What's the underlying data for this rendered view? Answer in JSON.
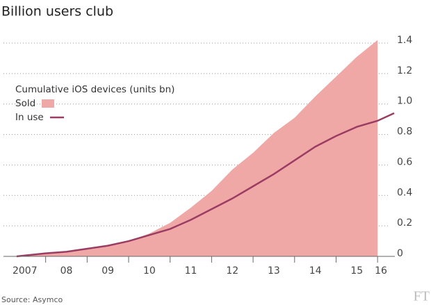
{
  "chart_data": {
    "type": "area-line",
    "title": "Billion users club",
    "legend_title": "Cumulative iOS devices (units bn)",
    "source": "Source: Asymco",
    "logo": "FT",
    "x": [
      2007.3,
      2008,
      2008.5,
      2009,
      2009.5,
      2010,
      2010.5,
      2011,
      2011.5,
      2012,
      2012.5,
      2013,
      2013.5,
      2014,
      2014.5,
      2015,
      2015.5,
      2016,
      2016.4
    ],
    "series": [
      {
        "name": "Sold",
        "kind": "area",
        "color": "#f0a8a6",
        "values": [
          0,
          0.02,
          0.03,
          0.05,
          0.07,
          0.1,
          0.15,
          0.22,
          0.32,
          0.43,
          0.57,
          0.68,
          0.81,
          0.91,
          1.05,
          1.18,
          1.31,
          1.42,
          null
        ]
      },
      {
        "name": "In use",
        "kind": "line",
        "color": "#9b3c62",
        "values": [
          0,
          0.02,
          0.03,
          0.05,
          0.07,
          0.1,
          0.14,
          0.18,
          0.24,
          0.31,
          0.38,
          0.46,
          0.54,
          0.63,
          0.72,
          0.79,
          0.85,
          0.89,
          0.94
        ]
      }
    ],
    "xlim": [
      2006.9,
      2016.45
    ],
    "xticks": [
      {
        "value": 2007,
        "label": "2007"
      },
      {
        "value": 2008,
        "label": "08"
      },
      {
        "value": 2009,
        "label": "09"
      },
      {
        "value": 2010,
        "label": "10"
      },
      {
        "value": 2011,
        "label": "11"
      },
      {
        "value": 2012,
        "label": "12"
      },
      {
        "value": 2013,
        "label": "13"
      },
      {
        "value": 2014,
        "label": "14"
      },
      {
        "value": 2015,
        "label": "15"
      },
      {
        "value": 2016,
        "label": "16"
      }
    ],
    "ylim": [
      0,
      1.4
    ],
    "yticks": [
      0,
      0.2,
      0.4,
      0.6,
      {
        "value": 1,
        "label": "1.0"
      },
      1.2,
      1.4,
      0.8
    ],
    "grid": true
  }
}
